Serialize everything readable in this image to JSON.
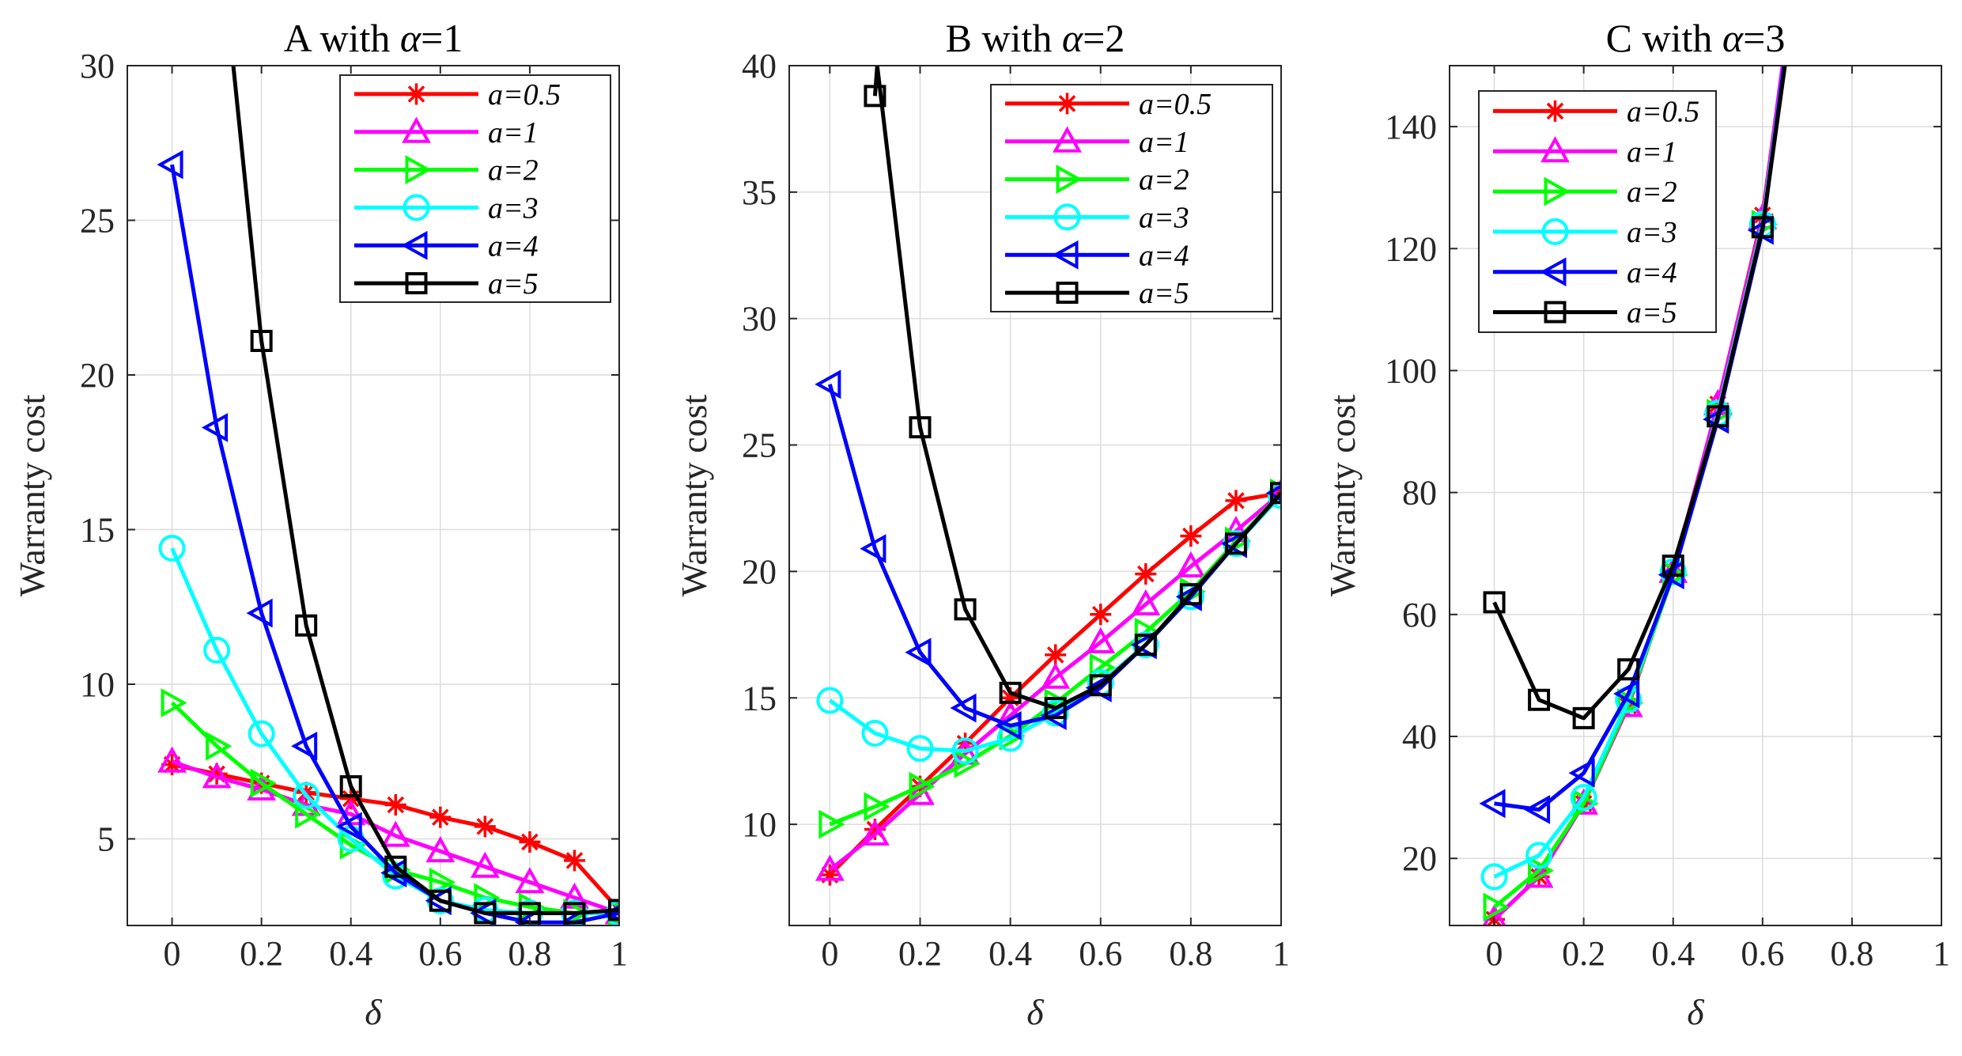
{
  "figure": {
    "axis_y_label": "Warranty cost",
    "axis_x_label": "δ"
  },
  "chart_data": [
    {
      "type": "line",
      "title_prefix": "A  with  ",
      "title_param": "α",
      "title_suffix": "=1",
      "xlabel": "δ",
      "ylabel": "Warranty cost",
      "xlim": [
        -0.1,
        1.0
      ],
      "ylim": [
        2.2,
        30
      ],
      "xticks": [
        0,
        0.2,
        0.4,
        0.6,
        0.8,
        1
      ],
      "xtick_labels": [
        "0",
        "0.2",
        "0.4",
        "0.6",
        "0.8",
        "1"
      ],
      "yticks": [
        5,
        10,
        15,
        20,
        25,
        30
      ],
      "ytick_labels": [
        "5",
        "10",
        "15",
        "20",
        "25",
        "30"
      ],
      "grid": true,
      "legend_position": "top-right",
      "x": [
        0,
        0.1,
        0.2,
        0.3,
        0.4,
        0.5,
        0.6,
        0.7,
        0.8,
        0.9,
        1.0
      ],
      "series": [
        {
          "name": "a=0.5",
          "color": "#ff0000",
          "marker": "asterisk",
          "values": [
            7.4,
            7.1,
            6.8,
            6.5,
            6.3,
            6.1,
            5.7,
            5.4,
            4.9,
            4.3,
            2.7
          ]
        },
        {
          "name": "a=1",
          "color": "#ff00ff",
          "marker": "triangle-up",
          "values": [
            7.5,
            7.0,
            6.6,
            6.1,
            5.8,
            5.1,
            4.6,
            4.1,
            3.6,
            3.1,
            2.6
          ]
        },
        {
          "name": "a=2",
          "color": "#00ff00",
          "marker": "triangle-right",
          "values": [
            9.4,
            8.0,
            6.8,
            5.8,
            4.8,
            4.0,
            3.6,
            3.1,
            2.8,
            2.6,
            2.6
          ]
        },
        {
          "name": "a=3",
          "color": "#00ffff",
          "marker": "circle",
          "values": [
            14.4,
            11.1,
            8.4,
            6.4,
            5.0,
            3.8,
            3.0,
            2.7,
            2.6,
            2.6,
            2.6
          ]
        },
        {
          "name": "a=4",
          "color": "#0000ff",
          "marker": "triangle-left",
          "values": [
            26.8,
            18.3,
            12.3,
            8.0,
            5.4,
            3.9,
            3.0,
            2.6,
            2.3,
            2.3,
            2.6
          ]
        },
        {
          "name": "a=5",
          "color": "#000000",
          "marker": "square",
          "values": [
            null,
            null,
            21.1,
            11.9,
            6.7,
            4.1,
            3.0,
            2.6,
            2.6,
            2.6,
            2.7
          ]
        }
      ],
      "extra_points": {
        "a=5": [
          [
            0.137,
            30
          ]
        ]
      }
    },
    {
      "type": "line",
      "title_prefix": "B  with  ",
      "title_param": "α",
      "title_suffix": "=2",
      "xlabel": "δ",
      "ylabel": "Warranty cost",
      "xlim": [
        -0.09,
        1.0
      ],
      "ylim": [
        6,
        40
      ],
      "xticks": [
        0,
        0.2,
        0.4,
        0.6,
        0.8,
        1
      ],
      "xtick_labels": [
        "0",
        "0.2",
        "0.4",
        "0.6",
        "0.8",
        "1"
      ],
      "yticks": [
        10,
        15,
        20,
        25,
        30,
        35,
        40
      ],
      "ytick_labels": [
        "10",
        "15",
        "20",
        "25",
        "30",
        "35",
        "40"
      ],
      "grid": true,
      "legend_position": "top-right",
      "x": [
        0,
        0.1,
        0.2,
        0.3,
        0.4,
        0.5,
        0.6,
        0.7,
        0.8,
        0.9,
        1.0
      ],
      "series": [
        {
          "name": "a=0.5",
          "color": "#ff0000",
          "marker": "asterisk",
          "values": [
            8.0,
            9.8,
            11.5,
            13.2,
            15.0,
            16.7,
            18.3,
            19.9,
            21.4,
            22.8,
            23.1
          ]
        },
        {
          "name": "a=1",
          "color": "#ff00ff",
          "marker": "triangle-up",
          "values": [
            8.2,
            9.6,
            11.2,
            12.8,
            14.3,
            15.8,
            17.2,
            18.7,
            20.2,
            21.6,
            23.1
          ]
        },
        {
          "name": "a=2",
          "color": "#00ff00",
          "marker": "triangle-right",
          "values": [
            10.0,
            10.7,
            11.5,
            12.4,
            13.5,
            14.8,
            16.2,
            17.6,
            19.2,
            21.2,
            23.1
          ]
        },
        {
          "name": "a=3",
          "color": "#00ffff",
          "marker": "circle",
          "values": [
            14.9,
            13.6,
            13.0,
            12.9,
            13.4,
            14.4,
            15.6,
            17.1,
            19.0,
            21.1,
            23.0
          ]
        },
        {
          "name": "a=4",
          "color": "#0000ff",
          "marker": "triangle-left",
          "values": [
            27.4,
            20.9,
            16.8,
            14.6,
            13.9,
            14.3,
            15.4,
            17.1,
            19.0,
            21.1,
            23.1
          ]
        },
        {
          "name": "a=5",
          "color": "#000000",
          "marker": "square",
          "values": [
            null,
            38.8,
            25.7,
            18.5,
            15.2,
            14.6,
            15.5,
            17.1,
            19.1,
            21.1,
            23.1
          ]
        }
      ],
      "extra_points": {
        "a=5": [
          [
            0.105,
            40
          ]
        ]
      }
    },
    {
      "type": "line",
      "title_prefix": "C  with  ",
      "title_param": "α",
      "title_suffix": "=3",
      "xlabel": "δ",
      "ylabel": "Warranty cost",
      "xlim": [
        -0.1,
        1.0
      ],
      "ylim": [
        9,
        150
      ],
      "xticks": [
        0,
        0.2,
        0.4,
        0.6,
        0.8,
        1
      ],
      "xtick_labels": [
        "0",
        "0.2",
        "0.4",
        "0.6",
        "0.8",
        "1"
      ],
      "yticks": [
        20,
        40,
        60,
        80,
        100,
        120,
        140
      ],
      "ytick_labels": [
        "20",
        "40",
        "60",
        "80",
        "100",
        "120",
        "140"
      ],
      "grid": true,
      "legend_position": "top-left",
      "x": [
        0,
        0.1,
        0.2,
        0.3,
        0.4,
        0.5,
        0.6
      ],
      "series": [
        {
          "name": "a=0.5",
          "color": "#ff0000",
          "marker": "asterisk",
          "values": [
            10.0,
            17.0,
            29.0,
            45.0,
            67.0,
            94.5,
            125.5
          ]
        },
        {
          "name": "a=1",
          "color": "#ff00ff",
          "marker": "triangle-up",
          "values": [
            10.0,
            17.0,
            29.0,
            45.0,
            67.0,
            94.5,
            125.0
          ]
        },
        {
          "name": "a=2",
          "color": "#00ff00",
          "marker": "triangle-right",
          "values": [
            12.0,
            18.0,
            29.0,
            45.5,
            66.5,
            93.0,
            124.0
          ]
        },
        {
          "name": "a=3",
          "color": "#00ffff",
          "marker": "circle",
          "values": [
            17.0,
            20.5,
            30.0,
            46.0,
            67.0,
            93.0,
            124.0
          ]
        },
        {
          "name": "a=4",
          "color": "#0000ff",
          "marker": "triangle-left",
          "values": [
            29.0,
            28.0,
            34.0,
            47.0,
            66.5,
            92.0,
            123.0
          ]
        },
        {
          "name": "a=5",
          "color": "#000000",
          "marker": "square",
          "values": [
            62.0,
            46.0,
            43.0,
            51.0,
            68.0,
            92.5,
            123.5
          ]
        }
      ],
      "extra_points": {
        "a=0.5": [
          [
            0.645,
            150
          ]
        ],
        "a=1": [
          [
            0.645,
            150
          ]
        ],
        "a=2": [
          [
            0.648,
            150
          ]
        ],
        "a=3": [
          [
            0.648,
            150
          ]
        ],
        "a=4": [
          [
            0.648,
            150
          ]
        ],
        "a=5": [
          [
            0.65,
            150
          ]
        ]
      }
    }
  ]
}
